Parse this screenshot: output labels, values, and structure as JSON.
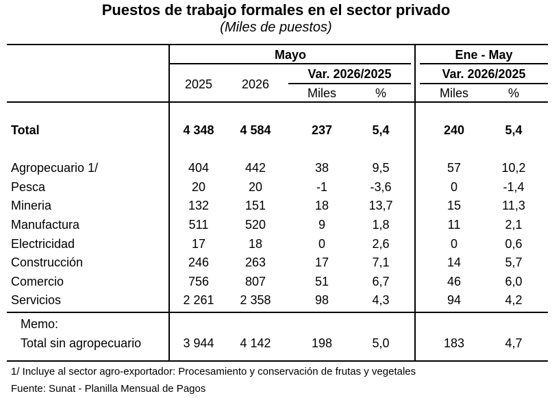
{
  "title": "Puestos de trabajo formales en el sector privado",
  "subtitle": "(Miles de puestos)",
  "header": {
    "group_mayo": "Mayo",
    "group_ene_may": "Ene - May",
    "year_2025": "2025",
    "year_2026": "2026",
    "var_mayo": "Var. 2026/2025",
    "var_ene_may": "Var. 2026/2025",
    "miles_1": "Miles",
    "pct_1": "%",
    "miles_2": "Miles",
    "pct_2": "%"
  },
  "total": {
    "label": "Total",
    "v2025": "4 348",
    "v2026": "4 584",
    "var_miles": "237",
    "var_pct": "5,4",
    "ene_miles": "240",
    "ene_pct": "5,4"
  },
  "rows": [
    {
      "label": "Agropecuario 1/",
      "v2025": "404",
      "v2026": "442",
      "var_miles": "38",
      "var_pct": "9,5",
      "ene_miles": "57",
      "ene_pct": "10,2"
    },
    {
      "label": "Pesca",
      "v2025": "20",
      "v2026": "20",
      "var_miles": "-1",
      "var_pct": "-3,6",
      "ene_miles": "0",
      "ene_pct": "-1,4"
    },
    {
      "label": "Mineria",
      "v2025": "132",
      "v2026": "151",
      "var_miles": "18",
      "var_pct": "13,7",
      "ene_miles": "15",
      "ene_pct": "11,3"
    },
    {
      "label": "Manufactura",
      "v2025": "511",
      "v2026": "520",
      "var_miles": "9",
      "var_pct": "1,8",
      "ene_miles": "11",
      "ene_pct": "2,1"
    },
    {
      "label": "Electricidad",
      "v2025": "17",
      "v2026": "18",
      "var_miles": "0",
      "var_pct": "2,6",
      "ene_miles": "0",
      "ene_pct": "0,6"
    },
    {
      "label": "Construcción",
      "v2025": "246",
      "v2026": "263",
      "var_miles": "17",
      "var_pct": "7,1",
      "ene_miles": "14",
      "ene_pct": "5,7"
    },
    {
      "label": "Comercio",
      "v2025": "756",
      "v2026": "807",
      "var_miles": "51",
      "var_pct": "6,7",
      "ene_miles": "46",
      "ene_pct": "6,0"
    },
    {
      "label": "Servicios",
      "v2025": "2 261",
      "v2026": "2 358",
      "var_miles": "98",
      "var_pct": "4,3",
      "ene_miles": "94",
      "ene_pct": "4,2"
    }
  ],
  "memo": {
    "label": "Memo:",
    "row": {
      "label": "Total sin agropecuario",
      "v2025": "3 944",
      "v2026": "4 142",
      "var_miles": "198",
      "var_pct": "5,0",
      "ene_miles": "183",
      "ene_pct": "4,7"
    }
  },
  "footnotes": {
    "note1": "1/ Incluye al sector agro-exportador: Procesamiento y conservación de frutas y vegetales",
    "source": "Fuente: Sunat - Planilla Mensual de Pagos"
  }
}
